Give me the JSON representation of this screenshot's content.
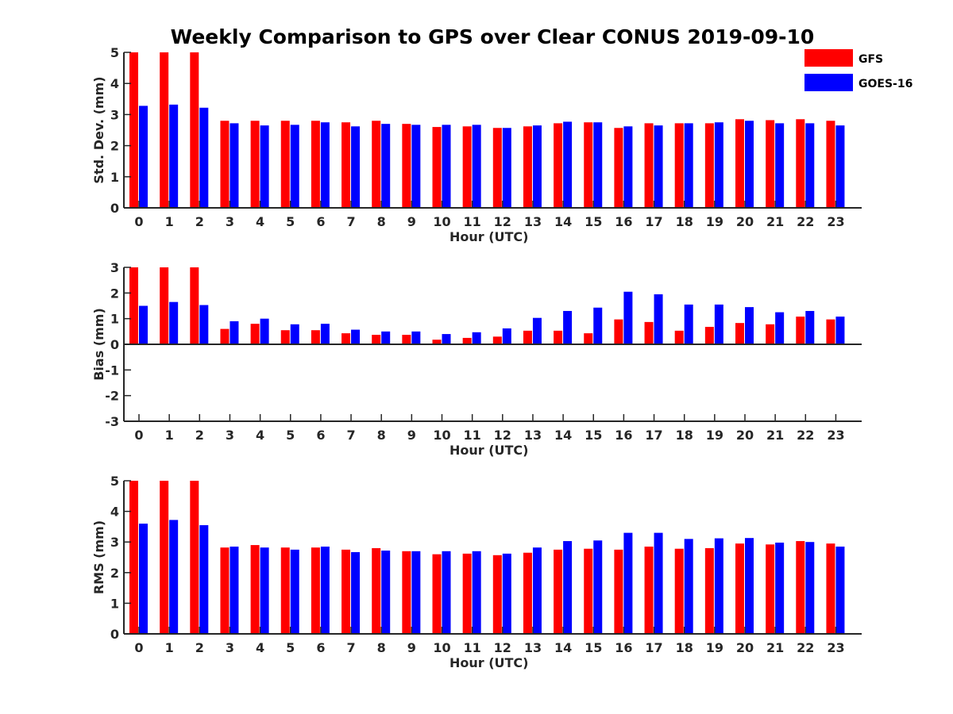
{
  "title": "Weekly Comparison to GPS over Clear CONUS 2019-09-10",
  "legend": {
    "placement": "top-right",
    "entries": [
      {
        "name": "GFS",
        "color": "#ff0000"
      },
      {
        "name": "GOES-16",
        "color": "#0000ff"
      }
    ]
  },
  "chart_data": [
    {
      "type": "bar",
      "xlabel": "Hour (UTC)",
      "ylabel": "Std. Dev. (mm)",
      "ylim": [
        0,
        5
      ],
      "yticks": [
        0,
        1,
        2,
        3,
        4,
        5
      ],
      "grid": false,
      "categories": [
        "0",
        "1",
        "2",
        "3",
        "4",
        "5",
        "6",
        "7",
        "8",
        "9",
        "10",
        "11",
        "12",
        "13",
        "14",
        "15",
        "16",
        "17",
        "18",
        "19",
        "20",
        "21",
        "22",
        "23"
      ],
      "series": [
        {
          "name": "GFS",
          "color": "#ff0000",
          "values": [
            5,
            5,
            5,
            2.8,
            2.8,
            2.8,
            2.8,
            2.75,
            2.8,
            2.7,
            2.6,
            2.62,
            2.57,
            2.62,
            2.72,
            2.75,
            2.57,
            2.72,
            2.72,
            2.72,
            2.85,
            2.82,
            2.85,
            2.8
          ]
        },
        {
          "name": "GOES-16",
          "color": "#0000ff",
          "values": [
            3.28,
            3.32,
            3.22,
            2.72,
            2.65,
            2.67,
            2.75,
            2.62,
            2.7,
            2.67,
            2.67,
            2.67,
            2.57,
            2.65,
            2.77,
            2.75,
            2.62,
            2.65,
            2.72,
            2.75,
            2.8,
            2.72,
            2.72,
            2.65
          ]
        }
      ]
    },
    {
      "type": "bar",
      "xlabel": "Hour (UTC)",
      "ylabel": "Bias (mm)",
      "ylim": [
        -3,
        3
      ],
      "yticks": [
        -3,
        -2,
        -1,
        0,
        1,
        2,
        3
      ],
      "grid": false,
      "categories": [
        "0",
        "1",
        "2",
        "3",
        "4",
        "5",
        "6",
        "7",
        "8",
        "9",
        "10",
        "11",
        "12",
        "13",
        "14",
        "15",
        "16",
        "17",
        "18",
        "19",
        "20",
        "21",
        "22",
        "23"
      ],
      "series": [
        {
          "name": "GFS",
          "color": "#ff0000",
          "values": [
            3,
            3,
            3,
            0.6,
            0.8,
            0.55,
            0.55,
            0.43,
            0.37,
            0.37,
            0.18,
            0.25,
            0.3,
            0.53,
            0.53,
            0.43,
            0.97,
            0.87,
            0.53,
            0.68,
            0.83,
            0.78,
            1.08,
            0.97
          ]
        },
        {
          "name": "GOES-16",
          "color": "#0000ff",
          "values": [
            1.5,
            1.65,
            1.53,
            0.9,
            1.0,
            0.78,
            0.8,
            0.57,
            0.5,
            0.5,
            0.4,
            0.47,
            0.62,
            1.03,
            1.3,
            1.43,
            2.05,
            1.95,
            1.55,
            1.55,
            1.45,
            1.25,
            1.3,
            1.08
          ]
        }
      ]
    },
    {
      "type": "bar",
      "xlabel": "Hour (UTC)",
      "ylabel": "RMS (mm)",
      "ylim": [
        0,
        5
      ],
      "yticks": [
        0,
        1,
        2,
        3,
        4,
        5
      ],
      "grid": false,
      "categories": [
        "0",
        "1",
        "2",
        "3",
        "4",
        "5",
        "6",
        "7",
        "8",
        "9",
        "10",
        "11",
        "12",
        "13",
        "14",
        "15",
        "16",
        "17",
        "18",
        "19",
        "20",
        "21",
        "22",
        "23"
      ],
      "series": [
        {
          "name": "GFS",
          "color": "#ff0000",
          "values": [
            5,
            5,
            5,
            2.82,
            2.9,
            2.82,
            2.82,
            2.75,
            2.8,
            2.7,
            2.6,
            2.62,
            2.57,
            2.65,
            2.75,
            2.78,
            2.75,
            2.85,
            2.78,
            2.8,
            2.95,
            2.92,
            3.03,
            2.95
          ]
        },
        {
          "name": "GOES-16",
          "color": "#0000ff",
          "values": [
            3.6,
            3.72,
            3.55,
            2.85,
            2.82,
            2.75,
            2.85,
            2.67,
            2.72,
            2.7,
            2.7,
            2.7,
            2.62,
            2.82,
            3.03,
            3.05,
            3.3,
            3.3,
            3.1,
            3.12,
            3.13,
            2.98,
            3.0,
            2.85
          ]
        }
      ]
    }
  ]
}
